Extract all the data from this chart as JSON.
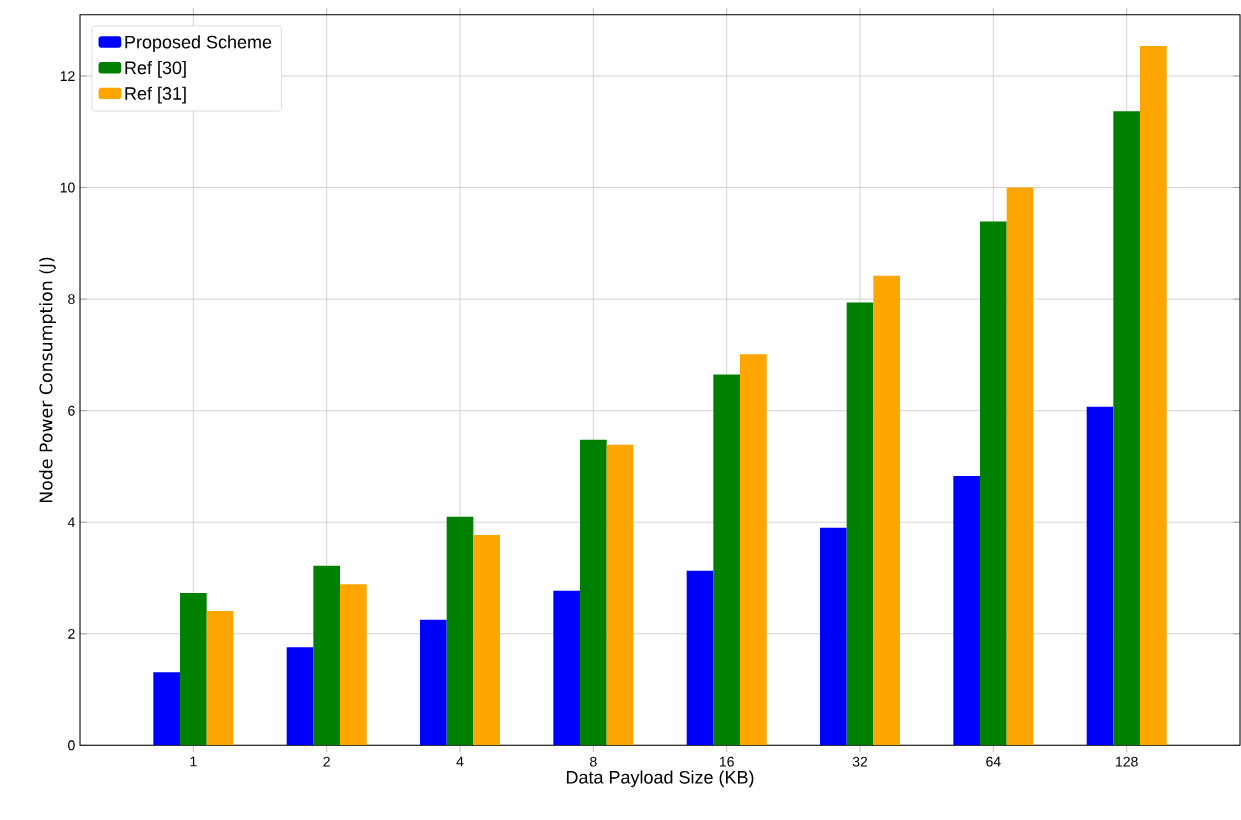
{
  "chart_data": {
    "type": "bar",
    "xlabel": "Data Payload Size (KB)",
    "ylabel": "Node Power Consumption (J)",
    "categories": [
      "1",
      "2",
      "4",
      "8",
      "16",
      "32",
      "64",
      "128"
    ],
    "series": [
      {
        "name": "Proposed Scheme",
        "color": "#0000ff",
        "values": [
          1.31,
          1.76,
          2.25,
          2.77,
          3.13,
          3.9,
          4.83,
          6.07
        ]
      },
      {
        "name": "Ref [30]",
        "color": "#008000",
        "values": [
          2.73,
          3.22,
          4.1,
          5.48,
          6.65,
          7.94,
          9.39,
          11.37
        ]
      },
      {
        "name": "Ref [31]",
        "color": "#ffa500",
        "values": [
          2.41,
          2.89,
          3.77,
          5.39,
          7.01,
          8.42,
          10.0,
          12.54
        ]
      }
    ],
    "ylim": [
      0,
      13.1
    ],
    "yticks": [
      0,
      2,
      4,
      6,
      8,
      10,
      12
    ],
    "grid": true,
    "legend": "top left"
  }
}
